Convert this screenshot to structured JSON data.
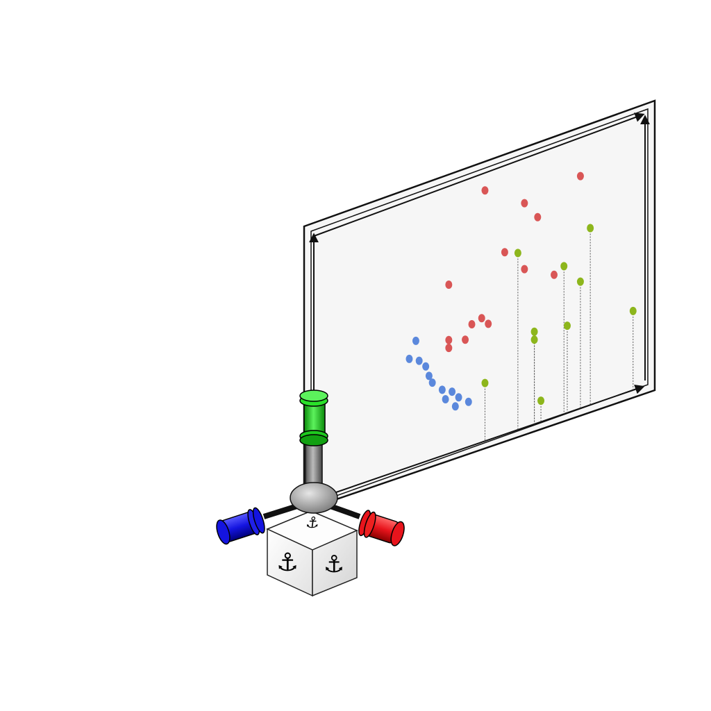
{
  "gizmo": {
    "anchor_glyph": "⚓",
    "axis_colors": {
      "x": "#e8141c",
      "y": "#1ec81e",
      "z": "#1414e0"
    },
    "icon": "anchor-icon"
  },
  "chart_data": {
    "type": "scatter",
    "title": "",
    "xlabel": "",
    "ylabel": "",
    "xlim": [
      0,
      10
    ],
    "ylim": [
      0,
      10
    ],
    "grid": false,
    "legend": "none",
    "series": [
      {
        "color": "#5b88dc",
        "stems": false,
        "points": [
          [
            3.1,
            4.7
          ],
          [
            2.9,
            4.1
          ],
          [
            3.2,
            3.9
          ],
          [
            3.4,
            3.6
          ],
          [
            3.5,
            3.2
          ],
          [
            3.6,
            2.9
          ],
          [
            3.9,
            2.5
          ],
          [
            4.2,
            2.3
          ],
          [
            4.0,
            2.1
          ],
          [
            4.4,
            2.0
          ],
          [
            4.3,
            1.7
          ],
          [
            4.7,
            1.7
          ]
        ]
      },
      {
        "color": "#d95656",
        "stems": false,
        "points": [
          [
            5.2,
            9.5
          ],
          [
            6.4,
            8.5
          ],
          [
            8.1,
            8.8
          ],
          [
            6.8,
            7.8
          ],
          [
            5.8,
            6.9
          ],
          [
            4.1,
            6.4
          ],
          [
            6.4,
            6.0
          ],
          [
            7.3,
            5.4
          ],
          [
            5.1,
            4.7
          ],
          [
            4.8,
            4.6
          ],
          [
            4.1,
            4.3
          ],
          [
            5.3,
            4.4
          ],
          [
            4.6,
            4.1
          ],
          [
            4.1,
            4.0
          ]
        ]
      },
      {
        "color": "#8db61c",
        "stems": true,
        "points": [
          [
            6.2,
            6.7
          ],
          [
            8.4,
            6.7
          ],
          [
            7.6,
            5.6
          ],
          [
            8.1,
            4.8
          ],
          [
            6.7,
            3.5
          ],
          [
            6.7,
            3.2
          ],
          [
            7.7,
            3.3
          ],
          [
            9.7,
            3.0
          ],
          [
            5.2,
            2.2
          ],
          [
            6.9,
            0.8
          ]
        ]
      }
    ]
  }
}
